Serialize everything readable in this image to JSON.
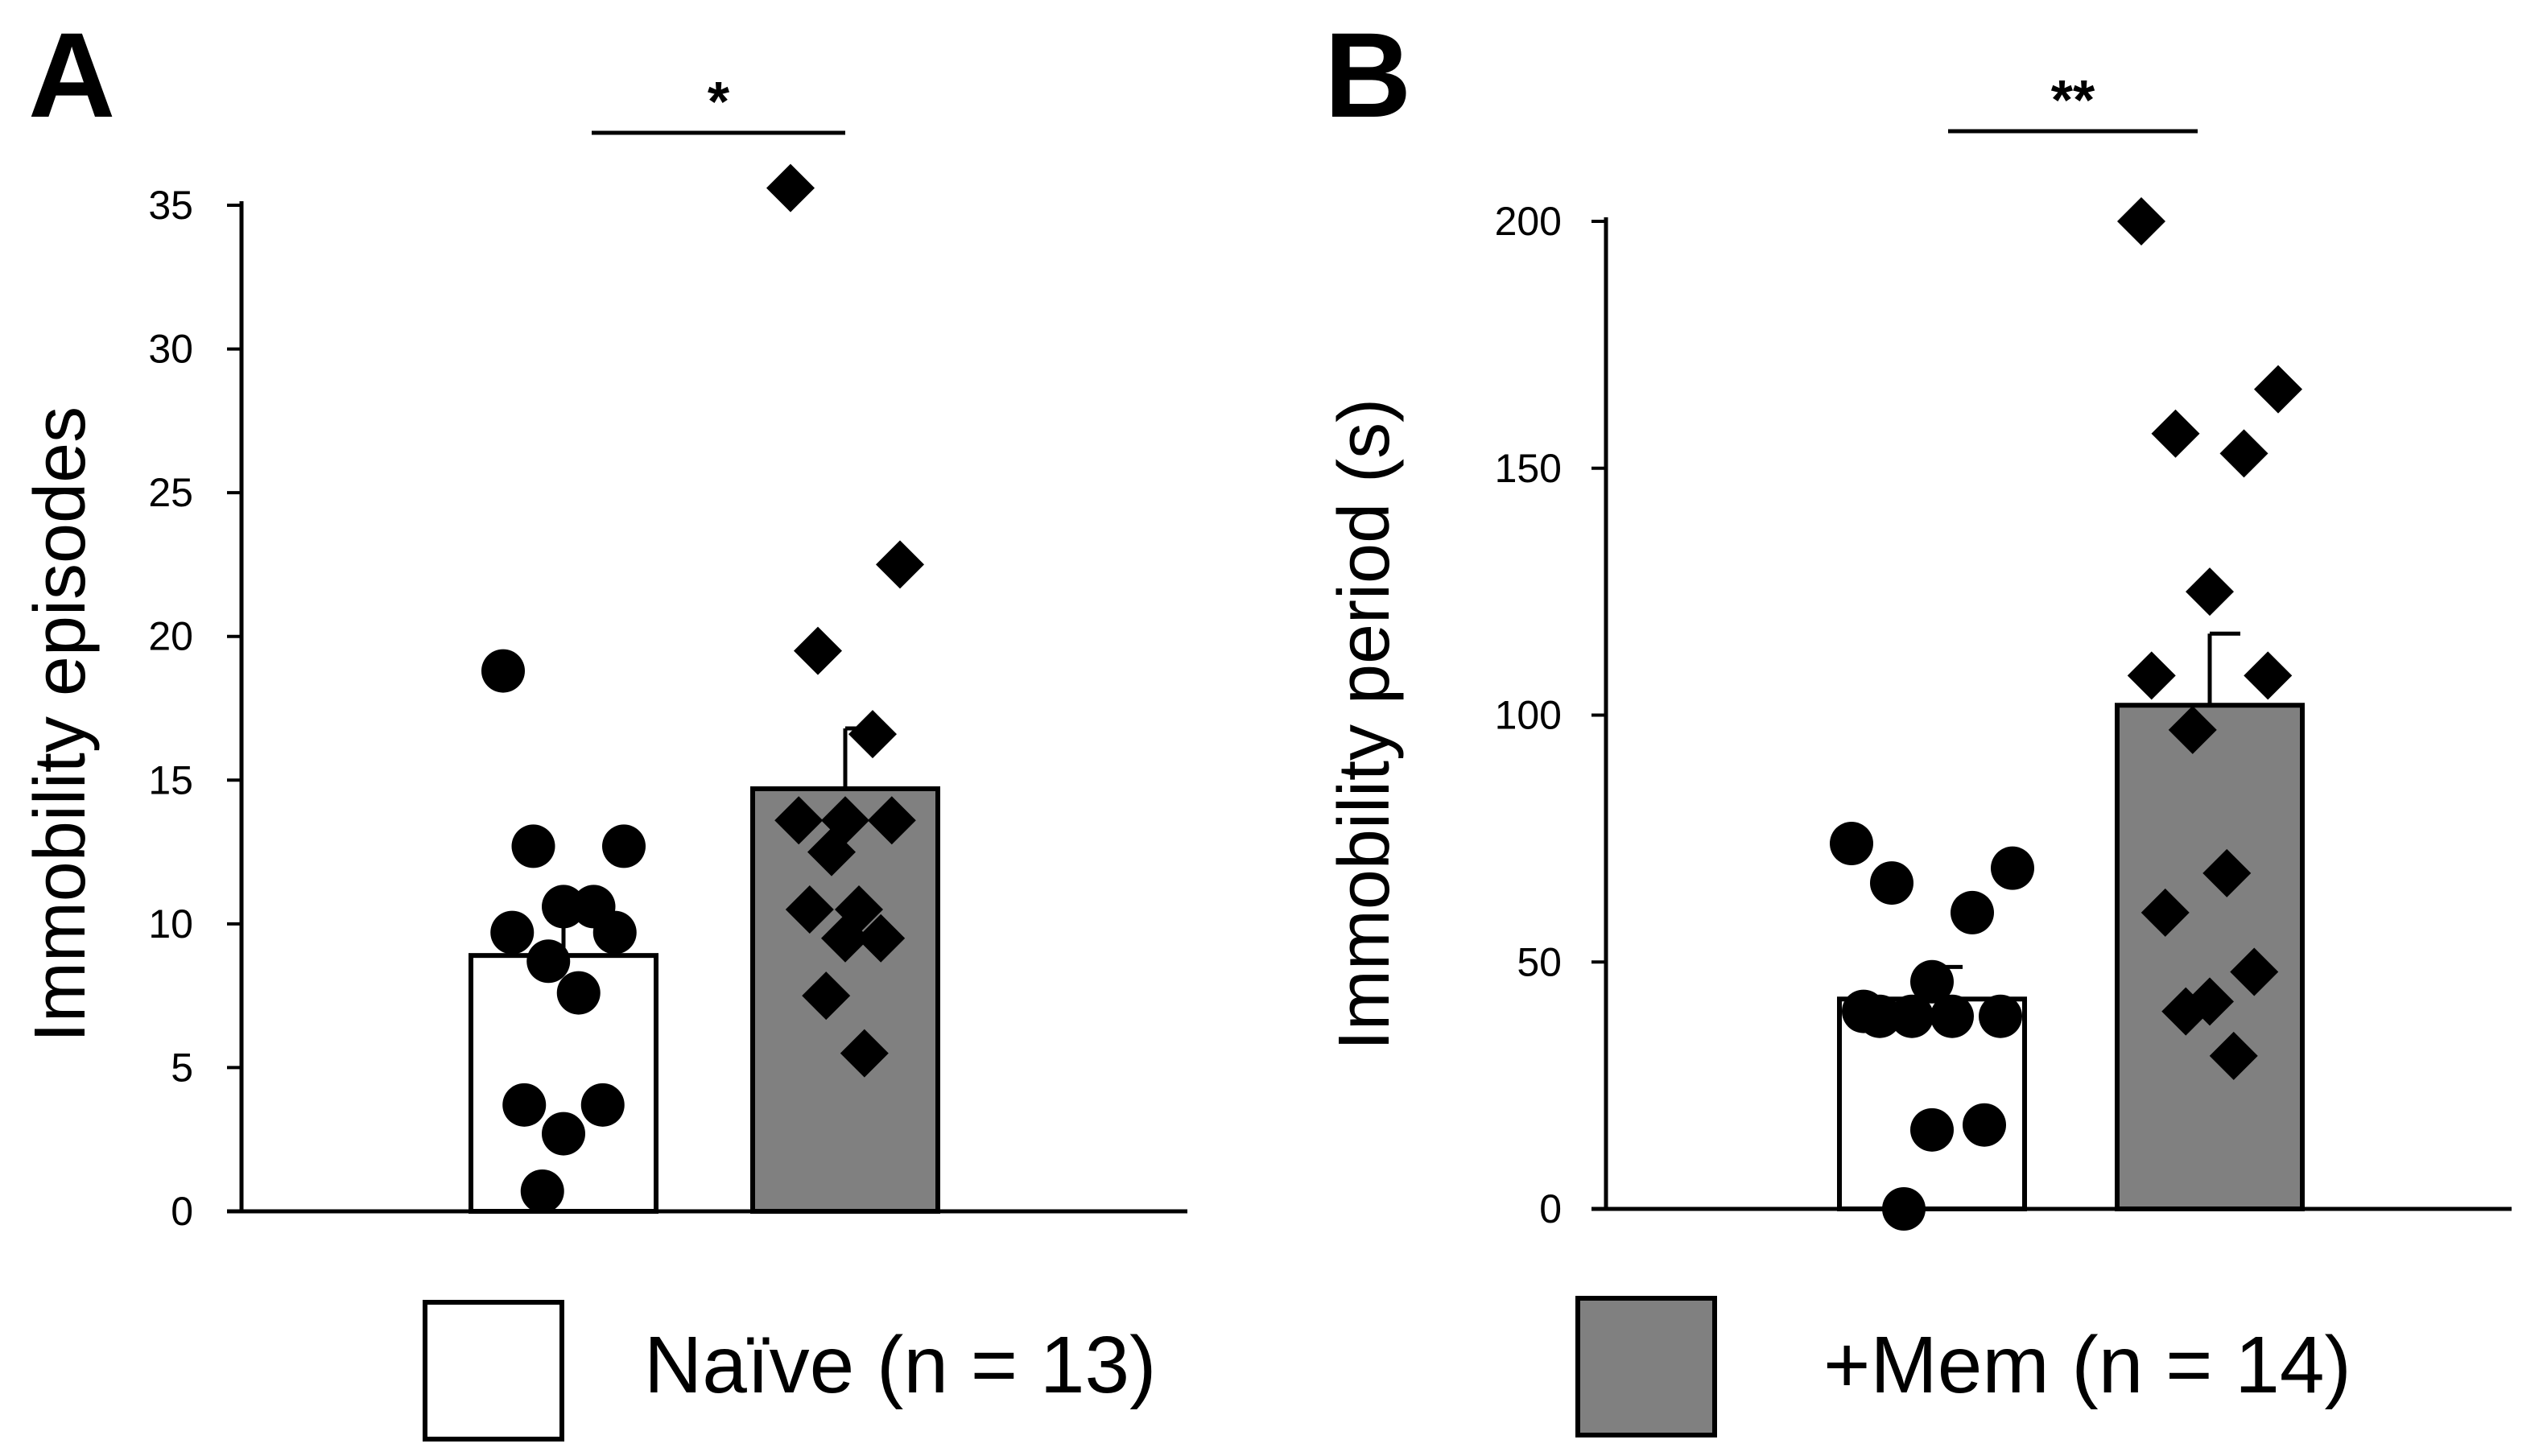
{
  "colors": {
    "naive": "#ffffff",
    "mem": "#808080",
    "stroke": "#000000"
  },
  "legend": [
    {
      "label": "Naïve (n = 13)",
      "color": "#ffffff"
    },
    {
      "label": "+Mem (n = 14)",
      "color": "#808080"
    }
  ],
  "chart_data": [
    {
      "panel": "A",
      "type": "bar",
      "ylabel": "Immobility episodes",
      "ylim": [
        0,
        35
      ],
      "yticks": [
        0,
        5,
        10,
        15,
        20,
        25,
        30,
        35
      ],
      "significance": "*",
      "series": [
        {
          "name": "Naïve (n = 13)",
          "mean": 8.9,
          "sem": 1.3,
          "points": [
            18.8,
            12.7,
            12.7,
            10.6,
            10.6,
            9.7,
            9.7,
            8.7,
            7.6,
            3.7,
            3.7,
            2.7,
            0.7
          ]
        },
        {
          "name": "+Mem (n = 14)",
          "mean": 14.7,
          "sem": 2.1,
          "points": [
            35.6,
            22.5,
            19.5,
            16.6,
            13.6,
            13.6,
            13.6,
            12.5,
            10.5,
            10.5,
            9.5,
            9.5,
            7.5,
            5.5
          ]
        }
      ]
    },
    {
      "panel": "B",
      "type": "bar",
      "ylabel": "Immobility period (s)",
      "ylim": [
        0,
        200
      ],
      "yticks": [
        0,
        50,
        100,
        150,
        200
      ],
      "significance": "**",
      "series": [
        {
          "name": "Naïve (n = 13)",
          "mean": 42.5,
          "sem": 6.5,
          "points": [
            74,
            69,
            66,
            60,
            46,
            40,
            39,
            39,
            39,
            39,
            17,
            16,
            0
          ]
        },
        {
          "name": "+Mem (n = 14)",
          "mean": 102,
          "sem": 14.5,
          "points": [
            200,
            166,
            157,
            153,
            125,
            108,
            108,
            97,
            68,
            60,
            48,
            42,
            40,
            31
          ]
        }
      ]
    }
  ]
}
